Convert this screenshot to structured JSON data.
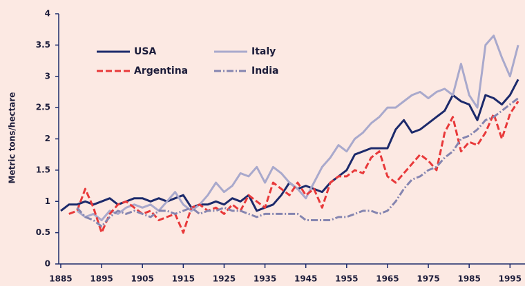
{
  "chart_data": {
    "type": "line",
    "y_label": "Metric tons/hectare",
    "x": [
      1885,
      1887,
      1889,
      1891,
      1893,
      1895,
      1897,
      1899,
      1901,
      1903,
      1905,
      1907,
      1909,
      1911,
      1913,
      1915,
      1917,
      1919,
      1921,
      1923,
      1925,
      1927,
      1929,
      1931,
      1933,
      1935,
      1937,
      1939,
      1941,
      1943,
      1945,
      1947,
      1949,
      1951,
      1953,
      1955,
      1957,
      1959,
      1961,
      1963,
      1965,
      1967,
      1969,
      1971,
      1973,
      1975,
      1977,
      1979,
      1981,
      1983,
      1985,
      1987,
      1989,
      1991,
      1993,
      1995,
      1997
    ],
    "series": [
      {
        "name": "USA",
        "color": "#1c2a6b",
        "dash": "solid",
        "values": [
          0.85,
          0.95,
          0.95,
          1.0,
          0.95,
          1.0,
          1.05,
          0.95,
          1.0,
          1.05,
          1.05,
          1.0,
          1.05,
          1.0,
          1.05,
          1.1,
          0.9,
          0.95,
          0.95,
          1.0,
          0.95,
          1.05,
          1.0,
          1.1,
          0.85,
          0.9,
          0.95,
          1.1,
          1.3,
          1.2,
          1.25,
          1.2,
          1.15,
          1.3,
          1.4,
          1.5,
          1.75,
          1.8,
          1.85,
          1.85,
          1.85,
          2.15,
          2.3,
          2.1,
          2.15,
          2.25,
          2.35,
          2.45,
          2.7,
          2.6,
          2.55,
          2.3,
          2.7,
          2.65,
          2.55,
          2.7,
          2.95
        ]
      },
      {
        "name": "Italy",
        "color": "#a9a9cc",
        "dash": "solid",
        "values": [
          null,
          null,
          0.85,
          0.75,
          0.8,
          0.7,
          0.85,
          0.8,
          0.9,
          0.95,
          0.9,
          0.95,
          0.85,
          1.0,
          1.15,
          0.95,
          0.85,
          0.95,
          1.1,
          1.3,
          1.15,
          1.25,
          1.45,
          1.4,
          1.55,
          1.3,
          1.55,
          1.45,
          1.3,
          1.2,
          1.05,
          1.3,
          1.55,
          1.7,
          1.9,
          1.8,
          2.0,
          2.1,
          2.25,
          2.35,
          2.5,
          2.5,
          2.6,
          2.7,
          2.75,
          2.65,
          2.75,
          2.8,
          2.7,
          3.2,
          2.7,
          2.5,
          3.5,
          3.65,
          3.3,
          3.0,
          3.5
        ]
      },
      {
        "name": "Argentina",
        "color": "#e8393a",
        "dash": "dashed",
        "values": [
          null,
          0.8,
          0.85,
          1.2,
          0.9,
          0.5,
          0.8,
          0.95,
          1.0,
          0.9,
          0.8,
          0.85,
          0.7,
          0.75,
          0.8,
          0.5,
          0.9,
          0.95,
          0.85,
          0.9,
          0.8,
          0.95,
          0.85,
          1.1,
          1.0,
          0.9,
          1.3,
          1.2,
          1.1,
          1.3,
          1.1,
          1.2,
          0.9,
          1.3,
          1.4,
          1.4,
          1.5,
          1.45,
          1.7,
          1.8,
          1.4,
          1.3,
          1.45,
          1.6,
          1.75,
          1.65,
          1.5,
          2.1,
          2.35,
          1.8,
          1.95,
          1.9,
          2.1,
          2.4,
          2.0,
          2.4,
          2.6
        ]
      },
      {
        "name": "India",
        "color": "#8585b0",
        "dash": "dashdot",
        "values": [
          null,
          null,
          0.9,
          0.75,
          0.7,
          0.6,
          0.75,
          0.85,
          0.8,
          0.85,
          0.8,
          0.75,
          0.85,
          0.85,
          0.8,
          0.85,
          0.9,
          0.8,
          0.85,
          0.85,
          0.9,
          0.85,
          0.85,
          0.8,
          0.75,
          0.8,
          0.8,
          0.8,
          0.8,
          0.8,
          0.7,
          0.7,
          0.7,
          0.7,
          0.75,
          0.75,
          0.8,
          0.85,
          0.85,
          0.8,
          0.85,
          1.0,
          1.2,
          1.35,
          1.4,
          1.5,
          1.55,
          1.7,
          1.8,
          2.0,
          2.05,
          2.15,
          2.3,
          2.35,
          2.45,
          2.55,
          2.65
        ]
      }
    ],
    "xlim": [
      1884.5,
      1998.5
    ],
    "xticks": [
      1885,
      1895,
      1905,
      1915,
      1925,
      1935,
      1945,
      1955,
      1965,
      1975,
      1985,
      1995
    ],
    "ylim": [
      0,
      4
    ],
    "yticks": [
      0,
      0.5,
      1,
      1.5,
      2,
      2.5,
      3,
      3.5,
      4
    ],
    "grid": false,
    "legend": "upper-left"
  }
}
